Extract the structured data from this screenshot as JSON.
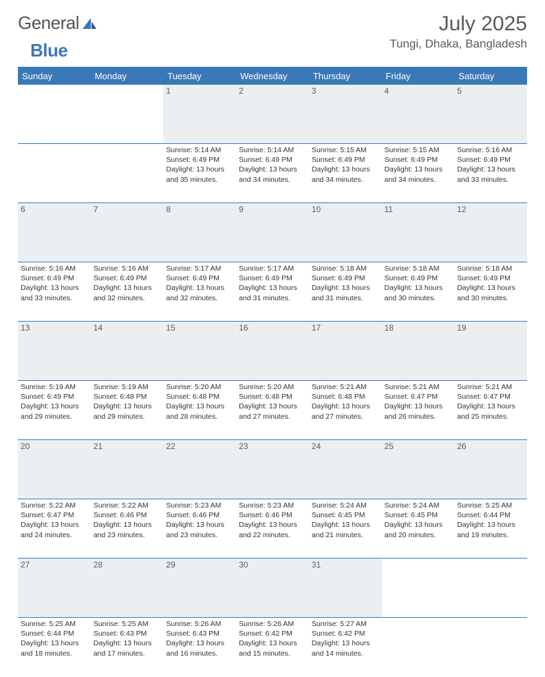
{
  "brand": {
    "first": "General",
    "second": "Blue"
  },
  "title": "July 2025",
  "location": "Tungi, Dhaka, Bangladesh",
  "colors": {
    "accent": "#3a79b7",
    "header_bg": "#eceff1",
    "text": "#333333"
  },
  "weekdays": [
    "Sunday",
    "Monday",
    "Tuesday",
    "Wednesday",
    "Thursday",
    "Friday",
    "Saturday"
  ],
  "leading_blanks": 2,
  "days": [
    {
      "n": 1,
      "sr": "5:14 AM",
      "ss": "6:49 PM",
      "dl": "13 hours and 35 minutes."
    },
    {
      "n": 2,
      "sr": "5:14 AM",
      "ss": "6:49 PM",
      "dl": "13 hours and 34 minutes."
    },
    {
      "n": 3,
      "sr": "5:15 AM",
      "ss": "6:49 PM",
      "dl": "13 hours and 34 minutes."
    },
    {
      "n": 4,
      "sr": "5:15 AM",
      "ss": "6:49 PM",
      "dl": "13 hours and 34 minutes."
    },
    {
      "n": 5,
      "sr": "5:16 AM",
      "ss": "6:49 PM",
      "dl": "13 hours and 33 minutes."
    },
    {
      "n": 6,
      "sr": "5:16 AM",
      "ss": "6:49 PM",
      "dl": "13 hours and 33 minutes."
    },
    {
      "n": 7,
      "sr": "5:16 AM",
      "ss": "6:49 PM",
      "dl": "13 hours and 32 minutes."
    },
    {
      "n": 8,
      "sr": "5:17 AM",
      "ss": "6:49 PM",
      "dl": "13 hours and 32 minutes."
    },
    {
      "n": 9,
      "sr": "5:17 AM",
      "ss": "6:49 PM",
      "dl": "13 hours and 31 minutes."
    },
    {
      "n": 10,
      "sr": "5:18 AM",
      "ss": "6:49 PM",
      "dl": "13 hours and 31 minutes."
    },
    {
      "n": 11,
      "sr": "5:18 AM",
      "ss": "6:49 PM",
      "dl": "13 hours and 30 minutes."
    },
    {
      "n": 12,
      "sr": "5:18 AM",
      "ss": "6:49 PM",
      "dl": "13 hours and 30 minutes."
    },
    {
      "n": 13,
      "sr": "5:19 AM",
      "ss": "6:49 PM",
      "dl": "13 hours and 29 minutes."
    },
    {
      "n": 14,
      "sr": "5:19 AM",
      "ss": "6:48 PM",
      "dl": "13 hours and 29 minutes."
    },
    {
      "n": 15,
      "sr": "5:20 AM",
      "ss": "6:48 PM",
      "dl": "13 hours and 28 minutes."
    },
    {
      "n": 16,
      "sr": "5:20 AM",
      "ss": "6:48 PM",
      "dl": "13 hours and 27 minutes."
    },
    {
      "n": 17,
      "sr": "5:21 AM",
      "ss": "6:48 PM",
      "dl": "13 hours and 27 minutes."
    },
    {
      "n": 18,
      "sr": "5:21 AM",
      "ss": "6:47 PM",
      "dl": "13 hours and 26 minutes."
    },
    {
      "n": 19,
      "sr": "5:21 AM",
      "ss": "6:47 PM",
      "dl": "13 hours and 25 minutes."
    },
    {
      "n": 20,
      "sr": "5:22 AM",
      "ss": "6:47 PM",
      "dl": "13 hours and 24 minutes."
    },
    {
      "n": 21,
      "sr": "5:22 AM",
      "ss": "6:46 PM",
      "dl": "13 hours and 23 minutes."
    },
    {
      "n": 22,
      "sr": "5:23 AM",
      "ss": "6:46 PM",
      "dl": "13 hours and 23 minutes."
    },
    {
      "n": 23,
      "sr": "5:23 AM",
      "ss": "6:46 PM",
      "dl": "13 hours and 22 minutes."
    },
    {
      "n": 24,
      "sr": "5:24 AM",
      "ss": "6:45 PM",
      "dl": "13 hours and 21 minutes."
    },
    {
      "n": 25,
      "sr": "5:24 AM",
      "ss": "6:45 PM",
      "dl": "13 hours and 20 minutes."
    },
    {
      "n": 26,
      "sr": "5:25 AM",
      "ss": "6:44 PM",
      "dl": "13 hours and 19 minutes."
    },
    {
      "n": 27,
      "sr": "5:25 AM",
      "ss": "6:44 PM",
      "dl": "13 hours and 18 minutes."
    },
    {
      "n": 28,
      "sr": "5:25 AM",
      "ss": "6:43 PM",
      "dl": "13 hours and 17 minutes."
    },
    {
      "n": 29,
      "sr": "5:26 AM",
      "ss": "6:43 PM",
      "dl": "13 hours and 16 minutes."
    },
    {
      "n": 30,
      "sr": "5:26 AM",
      "ss": "6:42 PM",
      "dl": "13 hours and 15 minutes."
    },
    {
      "n": 31,
      "sr": "5:27 AM",
      "ss": "6:42 PM",
      "dl": "13 hours and 14 minutes."
    }
  ],
  "labels": {
    "sunrise": "Sunrise:",
    "sunset": "Sunset:",
    "daylight": "Daylight:"
  }
}
